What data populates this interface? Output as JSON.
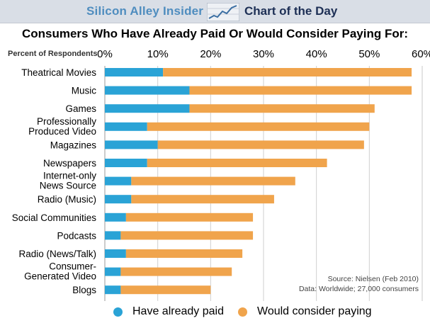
{
  "header": {
    "brand": "Silicon Alley Insider",
    "chart_of_day": "Chart of the Day",
    "logo_icon": "trend-line-chart-icon"
  },
  "colors": {
    "header_bg": "#d9dee6",
    "paid": "#2aa3d6",
    "consider": "#f0a44c",
    "brand": "#4f8dbf"
  },
  "legend": {
    "paid": "Have already paid",
    "consider": "Would consider paying"
  },
  "source": {
    "line1": "Source: Nielsen (Feb 2010)",
    "line2": "Data: Worldwide; 27,000 consumers"
  },
  "chart_data": {
    "type": "bar",
    "orientation": "horizontal",
    "stacked": true,
    "title": "Consumers Who Have Already Paid Or Would Consider Paying For:",
    "ylabel": "Percent of Respondents",
    "xlim": [
      0,
      60
    ],
    "xticks": [
      "0%",
      "10%",
      "20%",
      "30%",
      "40%",
      "50%",
      "60%"
    ],
    "grid": true,
    "legend_position": "bottom",
    "categories": [
      "Theatrical Movies",
      "Music",
      "Games",
      "Professionally Produced Video",
      "Magazines",
      "Newspapers",
      "Internet-only News Source",
      "Radio (Music)",
      "Social Communities",
      "Podcasts",
      "Radio (News/Talk)",
      "Consumer-Generated Video",
      "Blogs"
    ],
    "category_lines": [
      [
        "Theatrical Movies"
      ],
      [
        "Music"
      ],
      [
        "Games"
      ],
      [
        "Professionally",
        "Produced Video"
      ],
      [
        "Magazines"
      ],
      [
        "Newspapers"
      ],
      [
        "Internet-only",
        "News Source"
      ],
      [
        "Radio (Music)"
      ],
      [
        "Social Communities"
      ],
      [
        "Podcasts"
      ],
      [
        "Radio (News/Talk)"
      ],
      [
        "Consumer-",
        "Generated Video"
      ],
      [
        "Blogs"
      ]
    ],
    "series": [
      {
        "name": "Have already paid",
        "color": "#2aa3d6",
        "values": [
          11,
          16,
          16,
          8,
          10,
          8,
          5,
          5,
          4,
          3,
          4,
          3,
          3
        ]
      },
      {
        "name": "Would consider paying",
        "color": "#f0a44c",
        "values": [
          47,
          42,
          35,
          42,
          39,
          34,
          31,
          27,
          24,
          25,
          22,
          21,
          17
        ]
      }
    ]
  }
}
